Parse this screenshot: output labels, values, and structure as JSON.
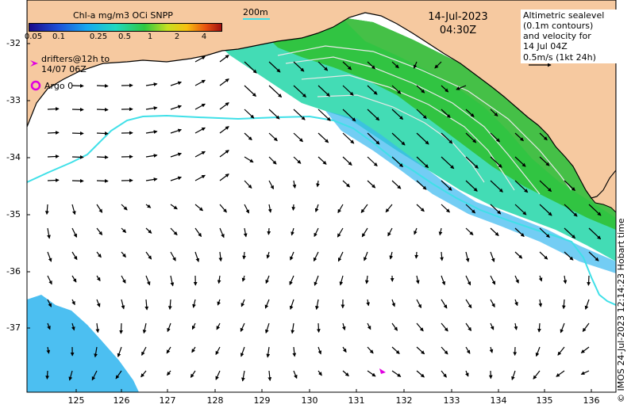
{
  "colorbar": {
    "title": "Chl-a mg/m3 OCi SNPP",
    "ticks": [
      "0.05",
      "0.1",
      "0.25",
      "0.5",
      "1",
      "2",
      "4"
    ]
  },
  "scale_bar": {
    "label": "200m"
  },
  "timestamp": {
    "date": "14-Jul-2023",
    "time": "04:30Z"
  },
  "legend_left": {
    "drifters": "drifters@12h to",
    "drifters_date": "14/07 06Z",
    "argo": "Argo 0"
  },
  "legend_right": {
    "line1": "Altimetric sealevel",
    "line2": "(0.1m contours)",
    "line3": "and velocity for",
    "line4": "14 Jul 04Z",
    "line5": "0.5m/s (1kt 24h)"
  },
  "axes": {
    "lat_ticks": [
      "-32",
      "-33",
      "-34",
      "-35",
      "-36",
      "-37"
    ],
    "lon_ticks": [
      "125",
      "126",
      "127",
      "128",
      "129",
      "130",
      "131",
      "132",
      "133",
      "134",
      "135",
      "136"
    ]
  },
  "credit": "© IMOS 24-Jul-2023 12:14:23 Hobart time",
  "colors": {
    "land": "#f6c9a0",
    "sea": "#ffffff",
    "coast_line": "#000000",
    "isobath": "#40e0e8",
    "chl_high": "#2ebf2e",
    "chl_mid": "#22d6a8",
    "chl_low": "#38b8f0",
    "drifter_marker": "#e000e0",
    "argo_marker": "#e000e0"
  }
}
